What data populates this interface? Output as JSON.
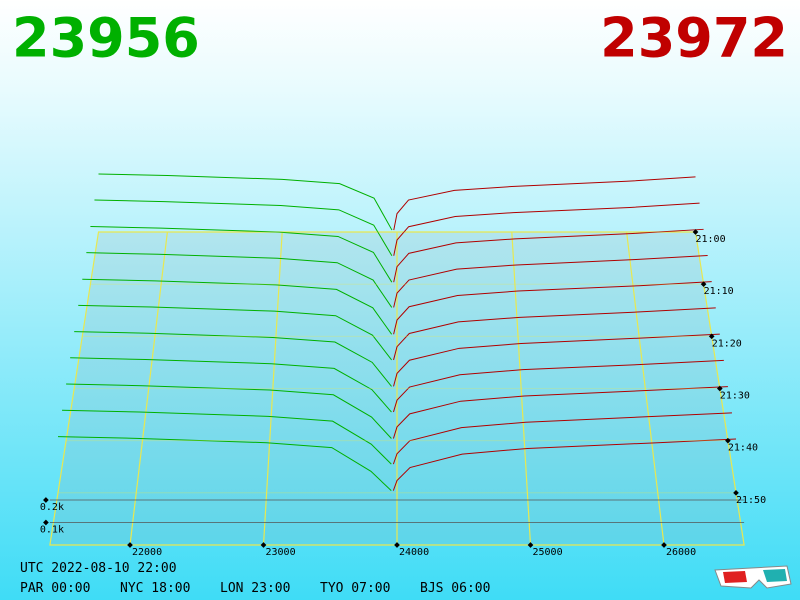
{
  "chart_data": {
    "type": "depth3d",
    "bid_title": "23956",
    "ask_title": "23972",
    "bid_color": "#00b000",
    "ask_color": "#b00000",
    "title_bid_color": "#00b000",
    "title_ask_color": "#c00000",
    "xlim": [
      21400,
      26600
    ],
    "xticks": [
      22000,
      23000,
      24000,
      25000,
      26000
    ],
    "zlim": [
      1260,
      1320
    ],
    "zticks": [
      {
        "value": 1260,
        "label": "21:00"
      },
      {
        "value": 1270,
        "label": "21:10"
      },
      {
        "value": 1280,
        "label": "21:20"
      },
      {
        "value": 1290,
        "label": "21:30"
      },
      {
        "value": 1300,
        "label": "21:40"
      },
      {
        "value": 1310,
        "label": "21:50"
      }
    ],
    "yticks": [
      {
        "value": 100,
        "label": "0.1k"
      },
      {
        "value": 200,
        "label": "0.2k"
      }
    ],
    "bid_prices": [
      21400,
      22000,
      23000,
      23500,
      23800,
      23956
    ],
    "ask_prices": [
      23972,
      24000,
      24100,
      24500,
      25000,
      26000,
      26600
    ],
    "snapshots": [
      {
        "z": 1260,
        "bid": [
          300,
          292,
          272,
          250,
          175,
          10
        ],
        "ask": [
          10,
          95,
          165,
          215,
          235,
          262,
          285
        ]
      },
      {
        "z": 1265,
        "bid": [
          296,
          288,
          268,
          246,
          168,
          12
        ],
        "ask": [
          12,
          92,
          160,
          212,
          232,
          258,
          280
        ]
      },
      {
        "z": 1270,
        "bid": [
          290,
          282,
          262,
          240,
          160,
          10
        ],
        "ask": [
          10,
          88,
          155,
          208,
          228,
          255,
          276
        ]
      },
      {
        "z": 1275,
        "bid": [
          286,
          278,
          258,
          236,
          150,
          14
        ],
        "ask": [
          14,
          85,
          150,
          204,
          225,
          252,
          272
        ]
      },
      {
        "z": 1280,
        "bid": [
          280,
          272,
          252,
          230,
          140,
          10
        ],
        "ask": [
          10,
          80,
          145,
          200,
          222,
          248,
          268
        ]
      },
      {
        "z": 1285,
        "bid": [
          276,
          268,
          248,
          226,
          132,
          12
        ],
        "ask": [
          12,
          76,
          140,
          196,
          218,
          245,
          264
        ]
      },
      {
        "z": 1290,
        "bid": [
          272,
          264,
          244,
          222,
          125,
          10
        ],
        "ask": [
          10,
          72,
          135,
          192,
          215,
          242,
          260
        ]
      },
      {
        "z": 1295,
        "bid": [
          268,
          260,
          240,
          218,
          118,
          12
        ],
        "ask": [
          12,
          68,
          130,
          188,
          212,
          238,
          256
        ]
      },
      {
        "z": 1300,
        "bid": [
          264,
          256,
          236,
          214,
          110,
          10
        ],
        "ask": [
          10,
          64,
          125,
          184,
          208,
          235,
          252
        ]
      },
      {
        "z": 1305,
        "bid": [
          260,
          252,
          232,
          210,
          104,
          12
        ],
        "ask": [
          12,
          60,
          120,
          180,
          205,
          232,
          248
        ]
      },
      {
        "z": 1310,
        "bid": [
          256,
          248,
          228,
          206,
          98,
          10
        ],
        "ask": [
          10,
          56,
          115,
          176,
          202,
          228,
          245
        ]
      }
    ]
  },
  "footer": {
    "utc": "UTC 2022-08-10 22:00",
    "clocks": [
      "PAR 00:00",
      "NYC 18:00",
      "LON 23:00",
      "TYO 07:00",
      "BJS 06:00"
    ]
  }
}
